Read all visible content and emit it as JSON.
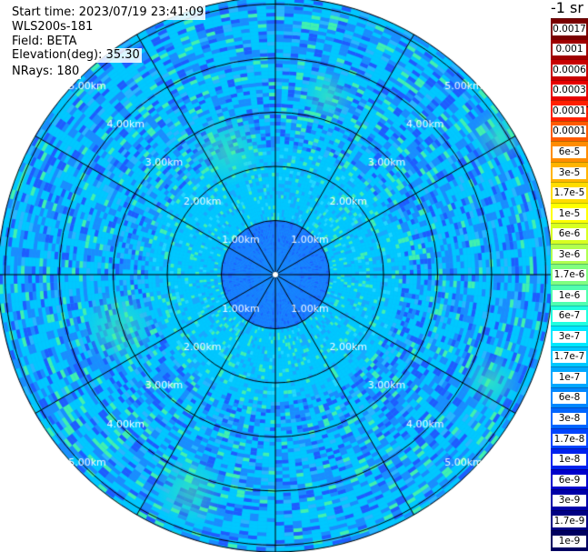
{
  "header": {
    "start_time": "Start time: 2023/07/19 23:41:09",
    "instrument": "WLS200s-181",
    "field": "Field: BETA",
    "elevation": "Elevation(deg): 35.30",
    "nrays": "NRays: 180"
  },
  "colorbar": {
    "unit": "-1 sr",
    "labels": [
      "0.0017",
      "0.001",
      "0.0006",
      "0.0003",
      "0.00017",
      "0.0001",
      "6e-5",
      "3e-5",
      "1.7e-5",
      "1e-5",
      "6e-6",
      "3e-6",
      "1.7e-6",
      "1e-6",
      "6e-7",
      "3e-7",
      "1.7e-7",
      "1e-7",
      "6e-8",
      "3e-8",
      "1.7e-8",
      "1e-8",
      "6e-9",
      "3e-9",
      "1.7e-9",
      "1e-9"
    ],
    "colors": [
      "#7a0000",
      "#a00000",
      "#c80000",
      "#e60000",
      "#ff2000",
      "#ff5a00",
      "#ff8c00",
      "#ffb400",
      "#ffdc00",
      "#ffff00",
      "#d8ff20",
      "#b0ff50",
      "#80ff80",
      "#50ffb0",
      "#20ffe0",
      "#00e8ff",
      "#00c8ff",
      "#00a8ff",
      "#0088ff",
      "#0066ff",
      "#0044ff",
      "#0022ee",
      "#0000cc",
      "#0000a8",
      "#000084",
      "#000060"
    ]
  },
  "range_rings": {
    "labels": [
      "1.00km",
      "2.00km",
      "3.00km",
      "4.00km",
      "5.00km"
    ]
  },
  "plot": {
    "radial_lines": 12,
    "bg_colors": {
      "inner": "#1a78ff",
      "mid": "#00c8ff",
      "outer": "#10b8f8",
      "dark": "#1f5cff",
      "green": "#40f0b0"
    }
  }
}
